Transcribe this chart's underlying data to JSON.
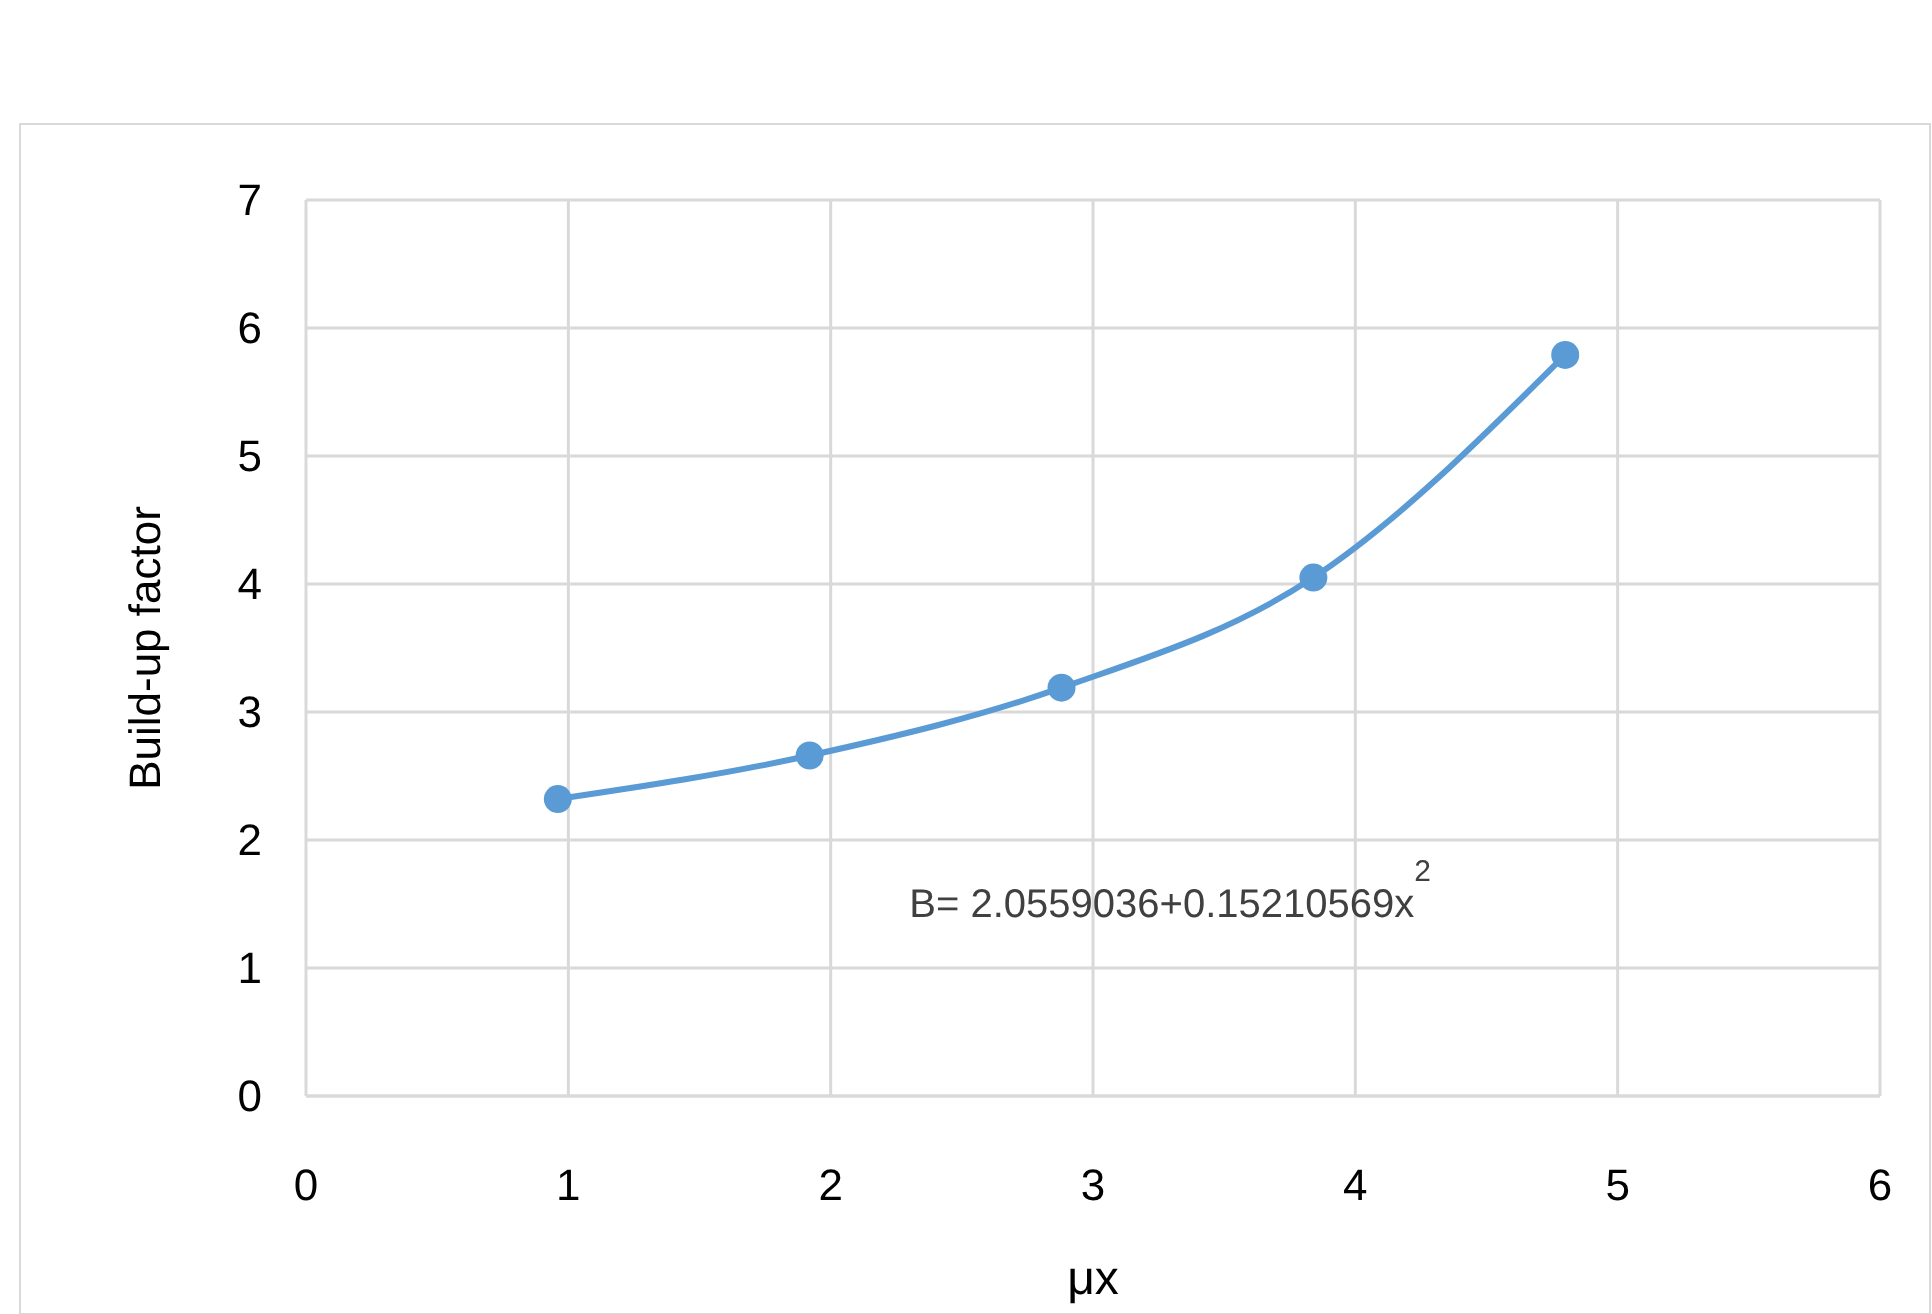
{
  "chart_data": {
    "type": "line",
    "xlabel": "μx",
    "ylabel": "Build-up factor",
    "x": [
      0.96,
      1.92,
      2.88,
      3.84,
      4.8
    ],
    "series": [
      {
        "color": "#5b9bd5",
        "values": [
          2.32,
          2.66,
          3.19,
          4.05,
          5.79
        ]
      }
    ],
    "xlim": [
      0,
      6
    ],
    "xticks": [
      0,
      1,
      2,
      3,
      4,
      5,
      6
    ],
    "ylim": [
      0,
      7
    ],
    "yticks": [
      0,
      1,
      2,
      3,
      4,
      5,
      6,
      7
    ],
    "grid": true,
    "marker": "circle",
    "line_style": "solid",
    "annotations": [
      "B= 2.0559036+0.15210569x$^{2}$"
    ]
  }
}
